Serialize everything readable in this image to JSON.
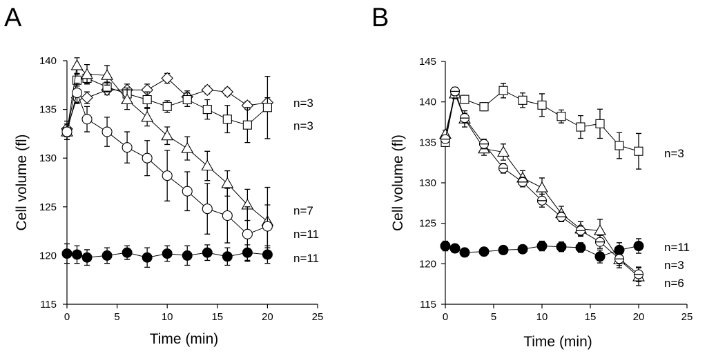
{
  "chart_data": [
    {
      "panel": "A",
      "type": "line",
      "xlabel": "Time (min)",
      "ylabel": "Cell volume (fl)",
      "xlim": [
        0,
        25
      ],
      "ylim": [
        115,
        140
      ],
      "xticks": [
        0,
        5,
        10,
        15,
        20,
        25
      ],
      "yticks": [
        115,
        120,
        125,
        130,
        135,
        140
      ],
      "series": [
        {
          "name": "diamond",
          "marker": "diamond",
          "n_label": "n=3",
          "x": [
            0,
            1,
            2,
            4,
            6,
            8,
            10,
            12,
            14,
            16,
            18,
            20
          ],
          "y": [
            133,
            136.2,
            136.2,
            137,
            137,
            137,
            138.2,
            136.3,
            137,
            136.8,
            135.4,
            135.7
          ],
          "err": [
            0.8,
            0.6,
            0.6,
            0.5,
            0.6,
            0.6,
            0.5,
            0.6,
            0.4,
            0.4,
            0.4,
            0.5
          ]
        },
        {
          "name": "square",
          "marker": "square",
          "n_label": "n=3",
          "x": [
            0,
            1,
            2,
            4,
            6,
            8,
            10,
            12,
            14,
            16,
            18,
            20
          ],
          "y": [
            132.7,
            138,
            138.2,
            137.3,
            136.6,
            136,
            135.3,
            136,
            135,
            134,
            133.4,
            135.2
          ],
          "err": [
            0.8,
            0.6,
            0.5,
            0.5,
            0.6,
            0.8,
            0.6,
            0.7,
            1.0,
            1.4,
            1.8,
            3.2
          ]
        },
        {
          "name": "triangle",
          "marker": "triangle",
          "n_label": "n=7",
          "x": [
            0,
            1,
            2,
            4,
            6,
            8,
            10,
            12,
            14,
            16,
            18,
            20
          ],
          "y": [
            132.7,
            139.5,
            138.6,
            138.5,
            136,
            134.2,
            132.3,
            131,
            129.2,
            127.4,
            125.2,
            123.5
          ],
          "err": [
            0.8,
            0.8,
            1.0,
            1.0,
            1.0,
            0.9,
            0.9,
            1.2,
            1.5,
            1.3,
            1.6,
            3.5
          ]
        },
        {
          "name": "open-circle",
          "marker": "circle-open",
          "n_label": "n=11",
          "x": [
            0,
            1,
            2,
            4,
            6,
            8,
            10,
            12,
            14,
            16,
            18,
            20
          ],
          "y": [
            132.7,
            136.7,
            134,
            132.7,
            131.1,
            130,
            128.2,
            126.6,
            124.8,
            124.1,
            122.2,
            123
          ],
          "err": [
            0.8,
            1.0,
            1.3,
            1.5,
            1.6,
            1.8,
            2.6,
            2.0,
            2.6,
            2.8,
            2.8,
            2.2
          ]
        },
        {
          "name": "filled-circle",
          "marker": "circle-filled",
          "n_label": "n=11",
          "x": [
            0,
            1,
            2,
            4,
            6,
            8,
            10,
            12,
            14,
            16,
            18,
            20
          ],
          "y": [
            120.2,
            120.1,
            119.8,
            120,
            120.3,
            119.8,
            120.2,
            120,
            120.3,
            119.9,
            120.3,
            120.1
          ],
          "err": [
            1.0,
            0.9,
            0.8,
            0.8,
            0.7,
            1.0,
            0.8,
            1.0,
            0.8,
            0.9,
            0.8,
            0.9
          ]
        }
      ]
    },
    {
      "panel": "B",
      "type": "line",
      "xlabel": "Time (min)",
      "ylabel": "Cell volume (fl)",
      "xlim": [
        0,
        25
      ],
      "ylim": [
        115,
        145
      ],
      "xticks": [
        0,
        5,
        10,
        15,
        20,
        25
      ],
      "yticks": [
        115,
        120,
        125,
        130,
        135,
        140,
        145
      ],
      "series": [
        {
          "name": "square",
          "marker": "square",
          "n_label": "n=3",
          "x": [
            0,
            1,
            2,
            4,
            6,
            8,
            10,
            12,
            14,
            16,
            18,
            20
          ],
          "y": [
            135,
            141,
            140.3,
            139.4,
            141.4,
            140.2,
            139.6,
            138.2,
            136.9,
            137.3,
            134.6,
            133.9
          ],
          "err": [
            0.5,
            0.6,
            0.5,
            0.5,
            0.9,
            0.9,
            1.4,
            0.8,
            1.4,
            1.8,
            1.6,
            2.2
          ]
        },
        {
          "name": "filled-circle",
          "marker": "circle-filled",
          "n_label": "n=11",
          "x": [
            0,
            1,
            2,
            4,
            6,
            8,
            10,
            12,
            14,
            16,
            18,
            20
          ],
          "y": [
            122.2,
            121.9,
            121.4,
            121.5,
            121.7,
            121.8,
            122.2,
            122.1,
            122,
            120.9,
            121.7,
            122.2
          ],
          "err": [
            0.6,
            0.5,
            0.5,
            0.5,
            0.5,
            0.5,
            0.6,
            0.6,
            0.6,
            0.8,
            0.9,
            0.9
          ]
        },
        {
          "name": "triangle",
          "marker": "triangle",
          "n_label": "n=3",
          "x": [
            0,
            1,
            2,
            4,
            6,
            8,
            10,
            12,
            14,
            16,
            18,
            20
          ],
          "y": [
            136,
            141,
            137.9,
            134.2,
            133.8,
            130.6,
            129.4,
            126.2,
            124.3,
            124.1,
            120.5,
            118.4
          ],
          "err": [
            0.5,
            0.6,
            1.0,
            0.8,
            1.0,
            0.9,
            1.2,
            0.9,
            0.9,
            1.4,
            1.0,
            1.1
          ]
        },
        {
          "name": "crossed-circle",
          "marker": "circle-crossed",
          "n_label": "n=6",
          "x": [
            0,
            1,
            2,
            4,
            6,
            8,
            10,
            12,
            14,
            16,
            18,
            20
          ],
          "y": [
            135.4,
            141.3,
            138,
            134.8,
            131.8,
            130.1,
            127.8,
            125.8,
            124.1,
            122.7,
            120.6,
            118.7
          ],
          "err": [
            0.4,
            0.5,
            0.6,
            0.6,
            0.6,
            0.6,
            0.8,
            0.6,
            0.6,
            0.8,
            0.8,
            0.9
          ]
        }
      ]
    }
  ]
}
